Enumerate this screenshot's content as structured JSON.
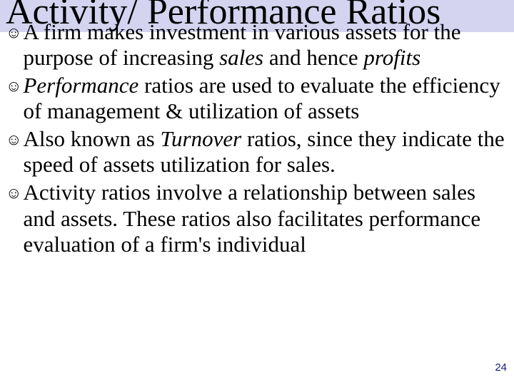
{
  "slide": {
    "title": "Activity/ Performance Ratios",
    "title_fontsize": 52,
    "title_bg": "#d4d4f0",
    "bullet_marker": "☺",
    "bullets": [
      {
        "pre": "A firm makes investment in various assets for the purpose of increasing ",
        "it1": "sales",
        "mid": " and hence ",
        "it2": "profits",
        "post": ""
      },
      {
        "pre": "",
        "it1": "Performance",
        "mid": " ratios are used to evaluate the efficiency of management & utilization of assets",
        "it2": "",
        "post": ""
      },
      {
        "pre": "Also known as ",
        "it1": "Turnover",
        "mid": " ratios, since they indicate the speed of assets utilization for sales.",
        "it2": "",
        "post": ""
      },
      {
        "pre": "Activity ratios involve a relationship between sales and assets. These ratios also facilitates performance evaluation of a firm's individual",
        "it1": "",
        "mid": "",
        "it2": "",
        "post": ""
      }
    ],
    "body_fontsize": 31,
    "text_color": "#000000",
    "background_color": "#ffffff",
    "page_number": "24",
    "page_number_color": "#1a1a7a"
  }
}
